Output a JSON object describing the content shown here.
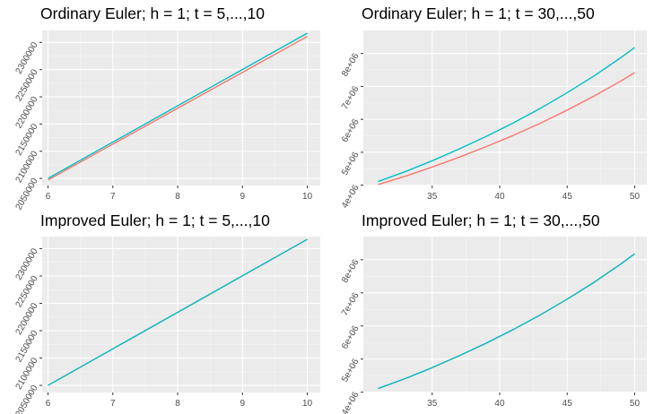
{
  "chart_data": [
    {
      "type": "line",
      "title": "Ordinary Euler;  h = 1;  t = 5,...,10",
      "xlabel": "",
      "ylabel": "",
      "xlim": [
        5.91,
        10.2
      ],
      "ylim": [
        2037000,
        2322000
      ],
      "xticks": [
        6,
        7,
        8,
        9,
        10
      ],
      "yticks": [
        2050000,
        2100000,
        2150000,
        2200000,
        2250000,
        2300000
      ],
      "ytick_labels": [
        "2050000",
        "2100000",
        "2150000",
        "2200000",
        "2250000",
        "2300000"
      ],
      "grid": true,
      "legend": "none",
      "series": [
        {
          "color": "#00BFC4",
          "x": [
            6,
            10
          ],
          "y": [
            2050000,
            2317000
          ]
        },
        {
          "color": "#F8766D",
          "x": [
            6,
            10
          ],
          "y": [
            2047000,
            2311000
          ]
        }
      ]
    },
    {
      "type": "line",
      "title": "Ordinary Euler;  h = 1;  t = 30,...,50",
      "xlabel": "",
      "ylabel": "",
      "xlim": [
        29.9,
        50.9
      ],
      "ylim": [
        3990000,
        8700000
      ],
      "xticks": [
        35,
        40,
        45,
        50
      ],
      "yticks": [
        4000000,
        5000000,
        6000000,
        7000000,
        8000000
      ],
      "ytick_labels": [
        "4e+06",
        "5e+06",
        "6e+06",
        "7e+06",
        "8e+06"
      ],
      "grid": true,
      "legend": "none",
      "series": [
        {
          "color": "#00BFC4",
          "x": [
            31,
            33,
            35,
            37,
            39,
            41,
            43,
            45,
            47,
            49,
            50
          ],
          "y": [
            4110000,
            4410000,
            4740000,
            5100000,
            5480000,
            5890000,
            6330000,
            6810000,
            7320000,
            7880000,
            8180000
          ]
        },
        {
          "color": "#F8766D",
          "x": [
            31,
            33,
            35,
            37,
            39,
            41,
            43,
            45,
            47,
            49,
            50
          ],
          "y": [
            4020000,
            4270000,
            4550000,
            4850000,
            5170000,
            5510000,
            5880000,
            6280000,
            6710000,
            7170000,
            7420000
          ]
        }
      ]
    },
    {
      "type": "line",
      "title": "Improved Euler;  h = 1;  t = 5,...,10",
      "xlabel": "",
      "ylabel": "",
      "xlim": [
        5.91,
        10.2
      ],
      "ylim": [
        2037000,
        2322000
      ],
      "xticks": [
        6,
        7,
        8,
        9,
        10
      ],
      "yticks": [
        2050000,
        2100000,
        2150000,
        2200000,
        2250000,
        2300000
      ],
      "ytick_labels": [
        "2050000",
        "2100000",
        "2150000",
        "2200000",
        "2250000",
        "2300000"
      ],
      "grid": true,
      "legend": "none",
      "series": [
        {
          "color": "#F8766D",
          "x": [
            6,
            10
          ],
          "y": [
            2050000,
            2317000
          ]
        },
        {
          "color": "#00BFC4",
          "x": [
            6,
            10
          ],
          "y": [
            2050000,
            2317000
          ]
        }
      ]
    },
    {
      "type": "line",
      "title": "Improved Euler;  h = 1;  t = 30,...,50",
      "xlabel": "",
      "ylabel": "",
      "xlim": [
        29.9,
        50.9
      ],
      "ylim": [
        3990000,
        8700000
      ],
      "xticks": [
        35,
        40,
        45,
        50
      ],
      "yticks": [
        4000000,
        5000000,
        6000000,
        7000000,
        8000000
      ],
      "ytick_labels": [
        "4e+06",
        "5e+06",
        "6e+06",
        "7e+06",
        "8e+06"
      ],
      "grid": true,
      "legend": "none",
      "series": [
        {
          "color": "#F8766D",
          "x": [
            31,
            33,
            35,
            37,
            39,
            41,
            43,
            45,
            47,
            49,
            50
          ],
          "y": [
            4110000,
            4410000,
            4740000,
            5100000,
            5480000,
            5890000,
            6330000,
            6810000,
            7320000,
            7880000,
            8180000
          ]
        },
        {
          "color": "#00BFC4",
          "x": [
            31,
            33,
            35,
            37,
            39,
            41,
            43,
            45,
            47,
            49,
            50
          ],
          "y": [
            4110000,
            4410000,
            4740000,
            5100000,
            5480000,
            5890000,
            6330000,
            6810000,
            7320000,
            7880000,
            8180000
          ]
        }
      ]
    }
  ],
  "colors": {
    "panel_background": "#EBEBEB",
    "grid_major": "#FFFFFF",
    "grid_minor": "#F5F5F5",
    "tick_text": "#4D4D4D",
    "axis_tick": "#333333"
  }
}
